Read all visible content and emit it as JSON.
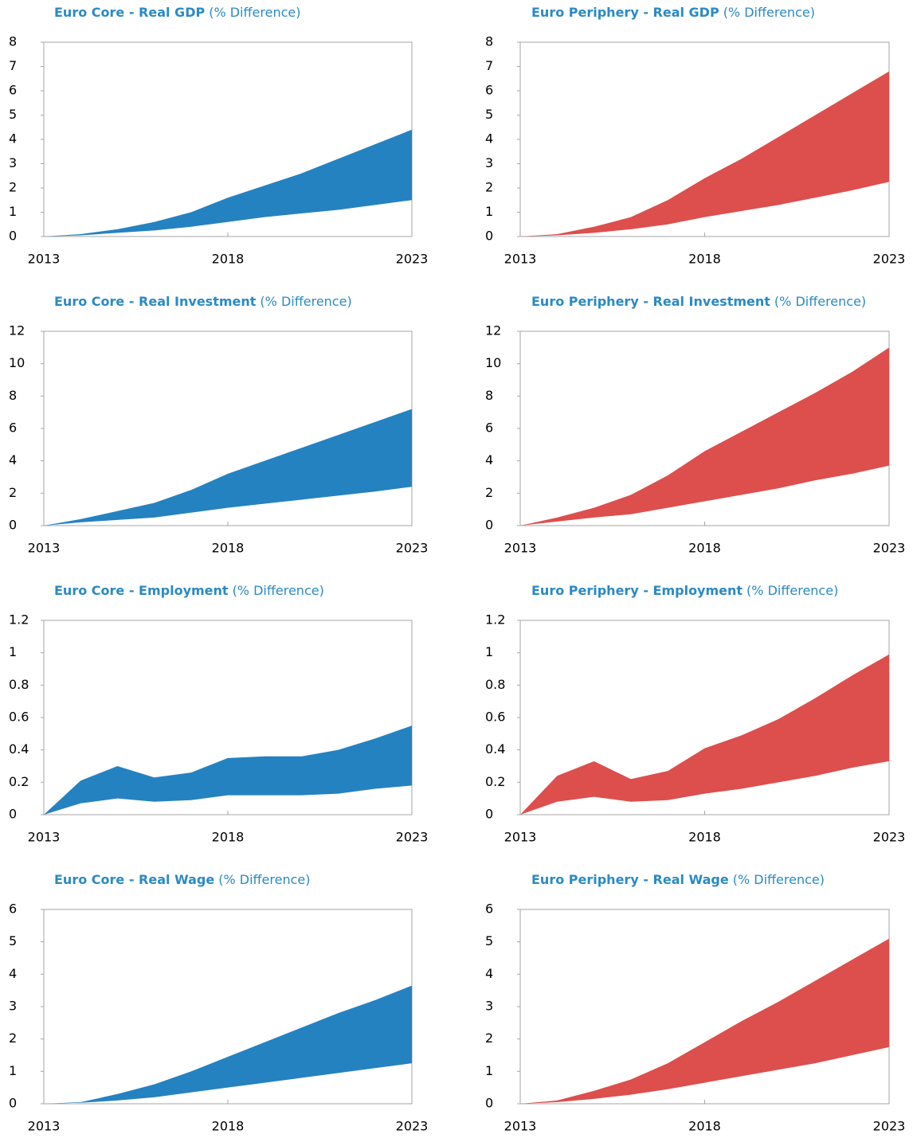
{
  "chart_data": [
    {
      "type": "band",
      "title": "Euro Core - Real GDP",
      "subtitle": "(% Difference)",
      "color": "#2582c0",
      "x": [
        2013,
        2014,
        2015,
        2016,
        2017,
        2018,
        2019,
        2020,
        2021,
        2022,
        2023
      ],
      "xlim": [
        2013,
        2023
      ],
      "xticks": [
        2013,
        2018,
        2023
      ],
      "upper": [
        0,
        0.1,
        0.3,
        0.6,
        1.0,
        1.6,
        2.1,
        2.6,
        3.2,
        3.8,
        4.4
      ],
      "lower": [
        0,
        0.05,
        0.15,
        0.25,
        0.4,
        0.6,
        0.8,
        0.95,
        1.1,
        1.3,
        1.5
      ],
      "ylim": [
        0,
        8
      ],
      "yticks": [
        0,
        1,
        2,
        3,
        4,
        5,
        6,
        7,
        8
      ]
    },
    {
      "type": "band",
      "title": "Euro Periphery - Real GDP",
      "subtitle": "(% Difference)",
      "color": "#dc4f4d",
      "x": [
        2013,
        2014,
        2015,
        2016,
        2017,
        2018,
        2019,
        2020,
        2021,
        2022,
        2023
      ],
      "xlim": [
        2013,
        2023
      ],
      "xticks": [
        2013,
        2018,
        2023
      ],
      "upper": [
        0,
        0.1,
        0.4,
        0.8,
        1.5,
        2.4,
        3.2,
        4.1,
        5.0,
        5.9,
        6.8
      ],
      "lower": [
        0,
        0.05,
        0.15,
        0.3,
        0.5,
        0.8,
        1.05,
        1.3,
        1.6,
        1.9,
        2.25
      ],
      "ylim": [
        0,
        8
      ],
      "yticks": [
        0,
        1,
        2,
        3,
        4,
        5,
        6,
        7,
        8
      ]
    },
    {
      "type": "band",
      "title": "Euro Core - Real Investment",
      "subtitle": "(% Difference)",
      "color": "#2582c0",
      "x": [
        2013,
        2014,
        2015,
        2016,
        2017,
        2018,
        2019,
        2020,
        2021,
        2022,
        2023
      ],
      "xlim": [
        2013,
        2023
      ],
      "xticks": [
        2013,
        2018,
        2023
      ],
      "upper": [
        0,
        0.4,
        0.9,
        1.4,
        2.2,
        3.2,
        4.0,
        4.8,
        5.6,
        6.4,
        7.2
      ],
      "lower": [
        0,
        0.2,
        0.35,
        0.5,
        0.8,
        1.1,
        1.35,
        1.6,
        1.85,
        2.1,
        2.4
      ],
      "ylim": [
        0,
        12
      ],
      "yticks": [
        0,
        2,
        4,
        6,
        8,
        10,
        12
      ]
    },
    {
      "type": "band",
      "title": "Euro Periphery - Real Investment",
      "subtitle": "(% Difference)",
      "color": "#dc4f4d",
      "x": [
        2013,
        2014,
        2015,
        2016,
        2017,
        2018,
        2019,
        2020,
        2021,
        2022,
        2023
      ],
      "xlim": [
        2013,
        2023
      ],
      "xticks": [
        2013,
        2018,
        2023
      ],
      "upper": [
        0,
        0.5,
        1.1,
        1.9,
        3.1,
        4.6,
        5.8,
        7.0,
        8.2,
        9.5,
        11.0
      ],
      "lower": [
        0,
        0.25,
        0.5,
        0.7,
        1.1,
        1.5,
        1.9,
        2.3,
        2.8,
        3.2,
        3.7
      ],
      "ylim": [
        0,
        12
      ],
      "yticks": [
        0,
        2,
        4,
        6,
        8,
        10,
        12
      ]
    },
    {
      "type": "band",
      "title": "Euro Core - Employment",
      "subtitle": "(% Difference)",
      "color": "#2582c0",
      "x": [
        2013,
        2014,
        2015,
        2016,
        2017,
        2018,
        2019,
        2020,
        2021,
        2022,
        2023
      ],
      "xlim": [
        2013,
        2023
      ],
      "xticks": [
        2013,
        2018,
        2023
      ],
      "upper": [
        0,
        0.21,
        0.3,
        0.23,
        0.26,
        0.35,
        0.36,
        0.36,
        0.4,
        0.47,
        0.55
      ],
      "lower": [
        0,
        0.07,
        0.1,
        0.08,
        0.09,
        0.12,
        0.12,
        0.12,
        0.13,
        0.16,
        0.18
      ],
      "ylim": [
        0,
        1.2
      ],
      "yticks": [
        0,
        0.2,
        0.4,
        0.6,
        0.8,
        1,
        1.2
      ]
    },
    {
      "type": "band",
      "title": "Euro Periphery - Employment",
      "subtitle": "(% Difference)",
      "color": "#dc4f4d",
      "x": [
        2013,
        2014,
        2015,
        2016,
        2017,
        2018,
        2019,
        2020,
        2021,
        2022,
        2023
      ],
      "xlim": [
        2013,
        2023
      ],
      "xticks": [
        2013,
        2018,
        2023
      ],
      "upper": [
        0,
        0.24,
        0.33,
        0.22,
        0.27,
        0.41,
        0.49,
        0.59,
        0.72,
        0.86,
        0.99
      ],
      "lower": [
        0,
        0.08,
        0.11,
        0.08,
        0.09,
        0.13,
        0.16,
        0.2,
        0.24,
        0.29,
        0.33
      ],
      "ylim": [
        0,
        1.2
      ],
      "yticks": [
        0,
        0.2,
        0.4,
        0.6,
        0.8,
        1,
        1.2
      ]
    },
    {
      "type": "band",
      "title": "Euro Core - Real Wage",
      "subtitle": "(% Difference)",
      "color": "#2582c0",
      "x": [
        2013,
        2014,
        2015,
        2016,
        2017,
        2018,
        2019,
        2020,
        2021,
        2022,
        2023
      ],
      "xlim": [
        2013,
        2023
      ],
      "xticks": [
        2013,
        2018,
        2023
      ],
      "upper": [
        0,
        0.05,
        0.3,
        0.6,
        1.0,
        1.45,
        1.9,
        2.35,
        2.8,
        3.2,
        3.65
      ],
      "lower": [
        0,
        0.03,
        0.1,
        0.2,
        0.35,
        0.5,
        0.65,
        0.8,
        0.95,
        1.1,
        1.25
      ],
      "ylim": [
        0,
        6
      ],
      "yticks": [
        0,
        1,
        2,
        3,
        4,
        5,
        6
      ]
    },
    {
      "type": "band",
      "title": "Euro Periphery - Real Wage",
      "subtitle": "(% Difference)",
      "color": "#dc4f4d",
      "x": [
        2013,
        2014,
        2015,
        2016,
        2017,
        2018,
        2019,
        2020,
        2021,
        2022,
        2023
      ],
      "xlim": [
        2013,
        2023
      ],
      "xticks": [
        2013,
        2018,
        2023
      ],
      "upper": [
        0,
        0.1,
        0.4,
        0.75,
        1.25,
        1.9,
        2.55,
        3.15,
        3.8,
        4.45,
        5.1
      ],
      "lower": [
        0,
        0.05,
        0.15,
        0.28,
        0.45,
        0.65,
        0.85,
        1.05,
        1.25,
        1.5,
        1.75
      ],
      "ylim": [
        0,
        6
      ],
      "yticks": [
        0,
        1,
        2,
        3,
        4,
        5,
        6
      ]
    }
  ]
}
